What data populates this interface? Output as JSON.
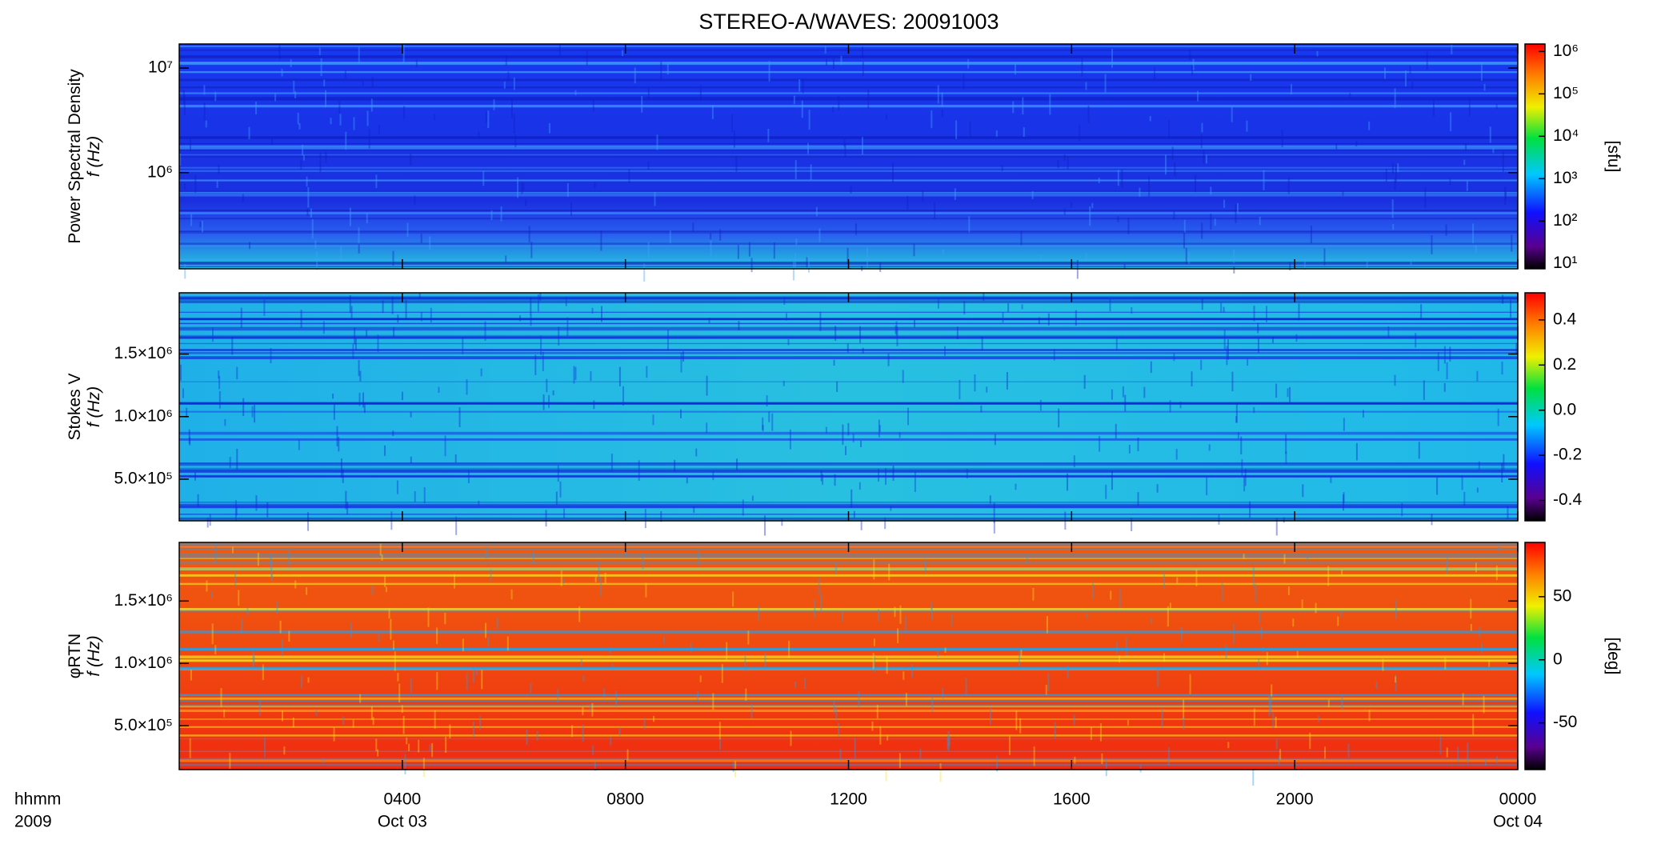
{
  "chart_data": [
    {
      "type": "heatmap",
      "title": "STEREO-A/WAVES: 20091003",
      "ylabel": [
        "Power Spectral Density",
        "f (Hz)"
      ],
      "ylog": true,
      "ylim": [
        120000,
        17000000
      ],
      "yticks": [
        {
          "value": 1000000,
          "label": "10⁶"
        },
        {
          "value": 10000000,
          "label": "10⁷"
        }
      ],
      "colorbar": {
        "log": true,
        "clim": [
          7.5,
          1500000
        ],
        "label": "[sfu]",
        "ticks": [
          {
            "value": 10,
            "label": "10¹"
          },
          {
            "value": 100,
            "label": "10²"
          },
          {
            "value": 1000,
            "label": "10³"
          },
          {
            "value": 10000,
            "label": "10⁴"
          },
          {
            "value": 100000,
            "label": "10⁵"
          },
          {
            "value": 1000000,
            "label": "10⁶"
          }
        ]
      },
      "background": "blue"
    },
    {
      "type": "heatmap",
      "ylabel": [
        "Stokes V",
        "f (Hz)"
      ],
      "ylog": false,
      "ylim": [
        167000,
        1990000
      ],
      "yticks": [
        {
          "value": 500000,
          "label": "5.0×10⁵"
        },
        {
          "value": 1000000,
          "label": "1.0×10⁶"
        },
        {
          "value": 1500000,
          "label": "1.5×10⁶"
        }
      ],
      "colorbar": {
        "log": false,
        "clim": [
          -0.49,
          0.52
        ],
        "ticks": [
          -0.4,
          -0.2,
          {
            "value": 0,
            "label": "0.0"
          },
          0.2,
          0.4
        ]
      },
      "background": "cyan"
    },
    {
      "type": "heatmap",
      "ylabel": [
        "φRTN",
        "f (Hz)"
      ],
      "ylog": false,
      "ylim": [
        149000,
        1970000
      ],
      "yticks": [
        {
          "value": 500000,
          "label": "5.0×10⁵"
        },
        {
          "value": 1000000,
          "label": "1.0×10⁶"
        },
        {
          "value": 1500000,
          "label": "1.5×10⁶"
        }
      ],
      "colorbar": {
        "log": false,
        "clim": [
          -87,
          93
        ],
        "label": "[deg]",
        "ticks": [
          -50,
          0,
          50
        ]
      },
      "background": "red",
      "xlabel": [
        "hhmm",
        "2009"
      ],
      "xlim": [
        0,
        24
      ],
      "xticks": [
        {
          "value": 4,
          "label": "0400"
        },
        {
          "value": 8,
          "label": "0800"
        },
        {
          "value": 12,
          "label": "1200"
        },
        {
          "value": 16,
          "label": "1600"
        },
        {
          "value": 20,
          "label": "2000"
        },
        {
          "value": 24,
          "label": "0000"
        }
      ],
      "xtick_dates": [
        {
          "value": 4,
          "label": "Oct 03"
        },
        {
          "value": 24,
          "label": "Oct 04"
        }
      ]
    }
  ]
}
